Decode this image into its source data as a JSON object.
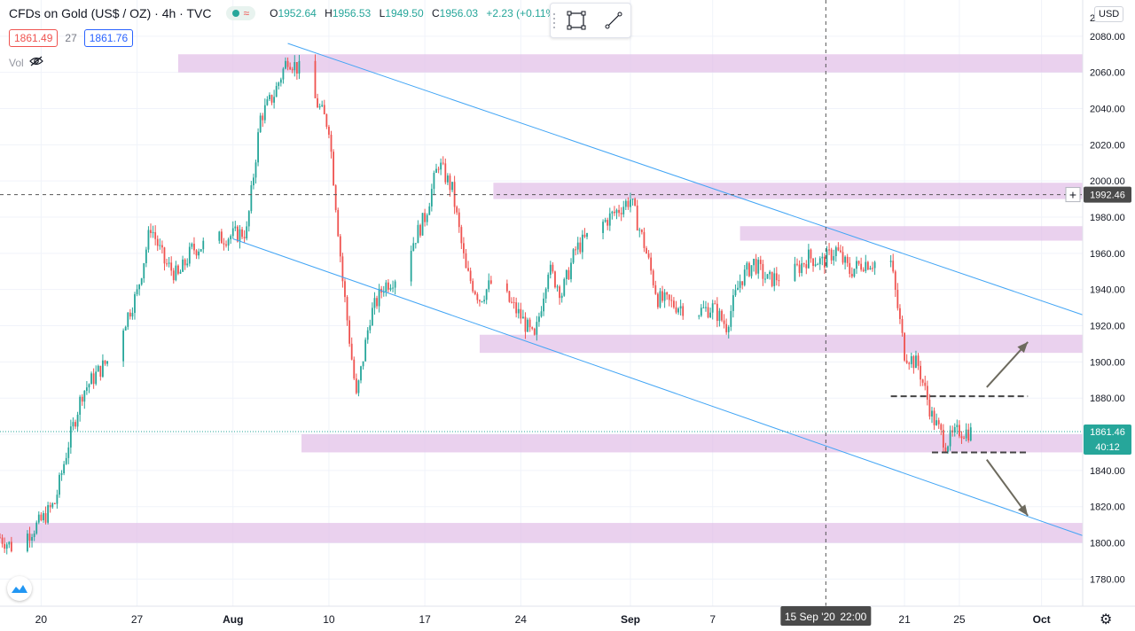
{
  "header": {
    "symbol": "CFDs on Gold (US$ / OZ)",
    "interval": "4h",
    "source": "TVC",
    "ohlc": {
      "o_label": "O",
      "o": "1952.64",
      "h_label": "H",
      "h": "1956.53",
      "l_label": "L",
      "l": "1949.50",
      "c_label": "C",
      "c": "1956.03",
      "change": "+2.23 (+0.11%)"
    }
  },
  "quote": {
    "sell": "1861.49",
    "spread": "27",
    "buy": "1861.76"
  },
  "volume_label": "Vol",
  "currency_label": "USD",
  "crosshair": {
    "date_label": "15 Sep '20",
    "time_label": "22:00",
    "price_label": "1992.46"
  },
  "last_price": {
    "price_label": "1861.46",
    "countdown": "40:12"
  },
  "colors": {
    "up": "#26a69a",
    "down": "#ef5350",
    "zone": "#e1bee7",
    "channel": "#42a5f5",
    "arrow": "#6d6a5e",
    "grid": "#f0f3fa"
  },
  "chart_data": {
    "type": "candlestick",
    "ylim": [
      1765,
      2100
    ],
    "y_ticks": [
      1780,
      1800,
      1820,
      1840,
      1860,
      1880,
      1900,
      1920,
      1940,
      1960,
      1980,
      2000,
      2020,
      2040,
      2060,
      2080
    ],
    "y_tick_labels": [
      "1780.00",
      "1800.00",
      "1820.00",
      "1840.00",
      "1860.00",
      "1880.00",
      "1900.00",
      "1920.00",
      "1940.00",
      "1960.00",
      "1980.00",
      "2000.00",
      "2020.00",
      "2040.00",
      "2060.00",
      "2080.00"
    ],
    "y_top_label": "2",
    "x_axis": {
      "start": "2020-07-17",
      "end": "2020-10-04",
      "ticks": [
        {
          "date": "2020-07-20",
          "label": "20",
          "bold": false
        },
        {
          "date": "2020-07-27",
          "label": "27",
          "bold": false
        },
        {
          "date": "2020-08-03",
          "label": "Aug",
          "bold": true
        },
        {
          "date": "2020-08-10",
          "label": "10",
          "bold": false
        },
        {
          "date": "2020-08-17",
          "label": "17",
          "bold": false
        },
        {
          "date": "2020-08-24",
          "label": "24",
          "bold": false
        },
        {
          "date": "2020-09-01",
          "label": "Sep",
          "bold": true
        },
        {
          "date": "2020-09-07",
          "label": "7",
          "bold": false
        },
        {
          "date": "2020-09-21",
          "label": "21",
          "bold": false
        },
        {
          "date": "2020-09-25",
          "label": "25",
          "bold": false
        },
        {
          "date": "2020-10-01",
          "label": "Oct",
          "bold": true
        }
      ]
    },
    "price_path": [
      [
        "2020-07-17",
        1803
      ],
      [
        "2020-07-18",
        1797
      ],
      [
        "2020-07-20",
        1812
      ],
      [
        "2020-07-21",
        1822
      ],
      [
        "2020-07-22",
        1855
      ],
      [
        "2020-07-23",
        1883
      ],
      [
        "2020-07-24",
        1893
      ],
      [
        "2020-07-25",
        1902
      ],
      [
        "2020-07-27",
        1938
      ],
      [
        "2020-07-28",
        1975
      ],
      [
        "2020-07-29",
        1955
      ],
      [
        "2020-07-30",
        1947
      ],
      [
        "2020-07-31",
        1962
      ],
      [
        "2020-08-02",
        1968
      ],
      [
        "2020-08-04",
        1972
      ],
      [
        "2020-08-05",
        2035
      ],
      [
        "2020-08-06",
        2048
      ],
      [
        "2020-08-07",
        2068
      ],
      [
        "2020-08-08",
        2060
      ],
      [
        "2020-08-09",
        2045
      ],
      [
        "2020-08-10",
        2030
      ],
      [
        "2020-08-11",
        1945
      ],
      [
        "2020-08-12",
        1880
      ],
      [
        "2020-08-13",
        1925
      ],
      [
        "2020-08-14",
        1942
      ],
      [
        "2020-08-15",
        1948
      ],
      [
        "2020-08-17",
        1980
      ],
      [
        "2020-08-18",
        2010
      ],
      [
        "2020-08-19",
        1995
      ],
      [
        "2020-08-20",
        1950
      ],
      [
        "2020-08-21",
        1935
      ],
      [
        "2020-08-22",
        1945
      ],
      [
        "2020-08-24",
        1925
      ],
      [
        "2020-08-25",
        1912
      ],
      [
        "2020-08-26",
        1952
      ],
      [
        "2020-08-27",
        1938
      ],
      [
        "2020-08-28",
        1962
      ],
      [
        "2020-08-29",
        1970
      ],
      [
        "2020-09-01",
        1990
      ],
      [
        "2020-09-02",
        1965
      ],
      [
        "2020-09-03",
        1935
      ],
      [
        "2020-09-04",
        1932
      ],
      [
        "2020-09-06",
        1928
      ],
      [
        "2020-09-07",
        1930
      ],
      [
        "2020-09-08",
        1920
      ],
      [
        "2020-09-09",
        1945
      ],
      [
        "2020-09-10",
        1955
      ],
      [
        "2020-09-11",
        1945
      ],
      [
        "2020-09-13",
        1950
      ],
      [
        "2020-09-14",
        1958
      ],
      [
        "2020-09-15",
        1955
      ],
      [
        "2020-09-16",
        1962
      ],
      [
        "2020-09-17",
        1950
      ],
      [
        "2020-09-18",
        1955
      ],
      [
        "2020-09-20",
        1955
      ],
      [
        "2020-09-21",
        1905
      ],
      [
        "2020-09-22",
        1898
      ],
      [
        "2020-09-23",
        1870
      ],
      [
        "2020-09-24",
        1855
      ],
      [
        "2020-09-25",
        1862
      ],
      [
        "2020-09-26",
        1861
      ]
    ],
    "zones": [
      {
        "from": 2060,
        "to": 2070,
        "start": "2020-07-30"
      },
      {
        "from": 1990,
        "to": 1999,
        "start": "2020-08-22"
      },
      {
        "from": 1967,
        "to": 1975,
        "start": "2020-09-09"
      },
      {
        "from": 1905,
        "to": 1915,
        "start": "2020-08-21"
      },
      {
        "from": 1850,
        "to": 1860,
        "start": "2020-08-08"
      },
      {
        "from": 1800,
        "to": 1811,
        "start": "2020-07-17"
      }
    ],
    "channel_lines": [
      {
        "p1": [
          "2020-08-07",
          2076
        ],
        "p2": [
          "2020-10-04",
          1926
        ]
      },
      {
        "p1": [
          "2020-08-03",
          1968
        ],
        "p2": [
          "2020-10-04",
          1804
        ]
      }
    ],
    "dashed_levels": [
      {
        "price": 1881,
        "start": "2020-09-20",
        "end": "2020-09-30"
      },
      {
        "price": 1850,
        "start": "2020-09-23",
        "end": "2020-09-30"
      }
    ],
    "arrows": [
      {
        "from": [
          "2020-09-27",
          1886
        ],
        "to": [
          "2020-09-30",
          1911
        ]
      },
      {
        "from": [
          "2020-09-27",
          1846
        ],
        "to": [
          "2020-09-30",
          1815
        ]
      }
    ],
    "crosshair_date": "2020-09-15",
    "crosshair_price": 1992.46,
    "last_price": 1861.46
  }
}
